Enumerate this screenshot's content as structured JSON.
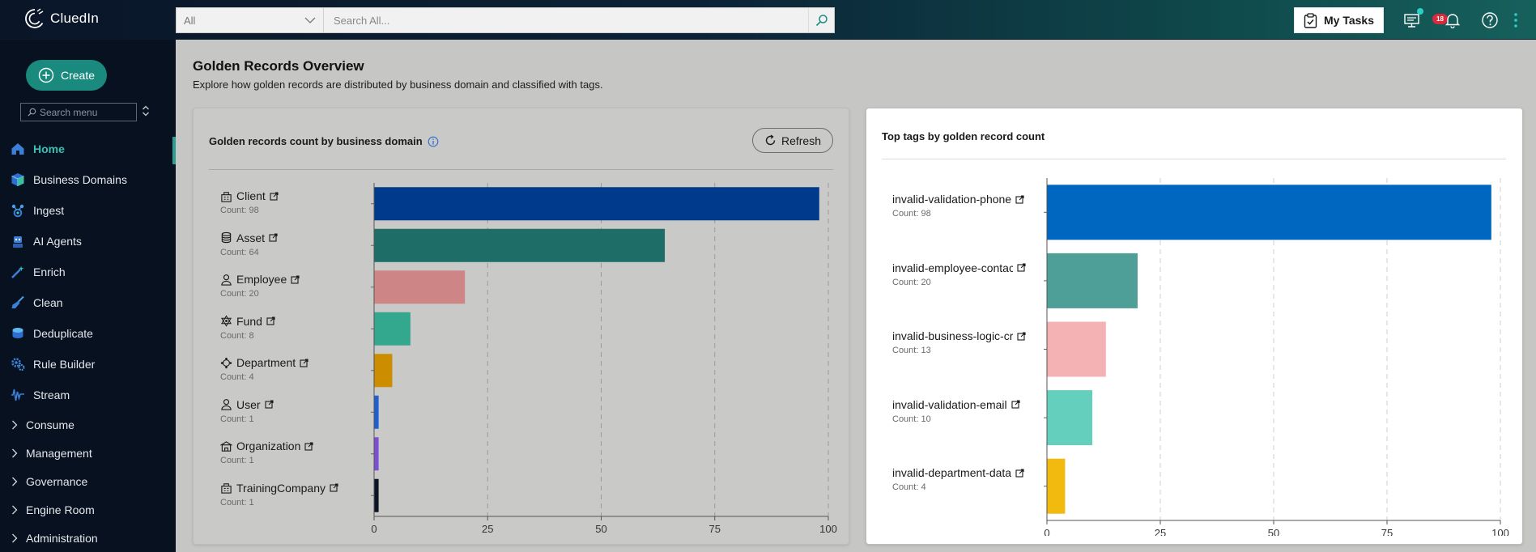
{
  "app": {
    "name": "CluedIn"
  },
  "search": {
    "scope": "All",
    "placeholder": "Search All..."
  },
  "topbar": {
    "my_tasks_label": "My Tasks",
    "notification_count": "18"
  },
  "sidebar": {
    "create_label": "Create",
    "menu_search_placeholder": "Search menu",
    "items": [
      {
        "label": "Home",
        "icon": "home-icon",
        "active": true
      },
      {
        "label": "Business Domains",
        "icon": "cube-icon"
      },
      {
        "label": "Ingest",
        "icon": "ingest-icon"
      },
      {
        "label": "AI Agents",
        "icon": "robot-icon"
      },
      {
        "label": "Enrich",
        "icon": "wand-icon"
      },
      {
        "label": "Clean",
        "icon": "broom-icon"
      },
      {
        "label": "Deduplicate",
        "icon": "layers-icon"
      },
      {
        "label": "Rule Builder",
        "icon": "gears-icon"
      },
      {
        "label": "Stream",
        "icon": "wave-icon"
      }
    ],
    "groups": [
      {
        "label": "Consume"
      },
      {
        "label": "Management"
      },
      {
        "label": "Governance"
      },
      {
        "label": "Engine Room"
      },
      {
        "label": "Administration"
      }
    ]
  },
  "page": {
    "title": "Golden Records Overview",
    "subtitle": "Explore how golden records are distributed by business domain and classified with tags."
  },
  "domains_card": {
    "title": "Golden records count by business domain",
    "refresh_label": "Refresh"
  },
  "tags_card": {
    "title": "Top tags by golden record count"
  },
  "chart_data": [
    {
      "type": "bar",
      "orientation": "horizontal",
      "title": "Golden records count by business domain",
      "categories": [
        "Client",
        "Asset",
        "Employee",
        "Fund",
        "Department",
        "User",
        "Organization",
        "TrainingCompany"
      ],
      "count_labels": [
        "Count: 98",
        "Count: 64",
        "Count: 20",
        "Count: 8",
        "Count: 4",
        "Count: 1",
        "Count: 1",
        "Count: 1"
      ],
      "values": [
        98,
        64,
        20,
        8,
        4,
        1,
        1,
        1
      ],
      "icons": [
        "org-icon",
        "database-icon",
        "person-icon",
        "fund-icon",
        "department-icon",
        "person-icon",
        "building-icon",
        "org-icon"
      ],
      "colors": [
        "#003a8c",
        "#1e6d66",
        "#cd8585",
        "#33a88e",
        "#cc8d00",
        "#1f5fd1",
        "#7b4fd1",
        "#0c1523"
      ],
      "xlim": [
        0,
        100
      ],
      "xticks": [
        0,
        25,
        50,
        75,
        100
      ],
      "grid": true
    },
    {
      "type": "bar",
      "orientation": "horizontal",
      "title": "Top tags by golden record count",
      "categories": [
        "invalid-validation-phone",
        "invalid-employee-contact-",
        "invalid-business-logic-crec",
        "invalid-validation-email",
        "invalid-department-data"
      ],
      "count_labels": [
        "Count: 98",
        "Count: 20",
        "Count: 13",
        "Count: 10",
        "Count: 4"
      ],
      "values": [
        98,
        20,
        13,
        10,
        4
      ],
      "colors": [
        "#0067c0",
        "#4e9f98",
        "#f5b2b4",
        "#63cfbc",
        "#f2b90e"
      ],
      "xlim": [
        0,
        100
      ],
      "xticks": [
        0,
        25,
        50,
        75,
        100
      ],
      "grid": true
    }
  ]
}
